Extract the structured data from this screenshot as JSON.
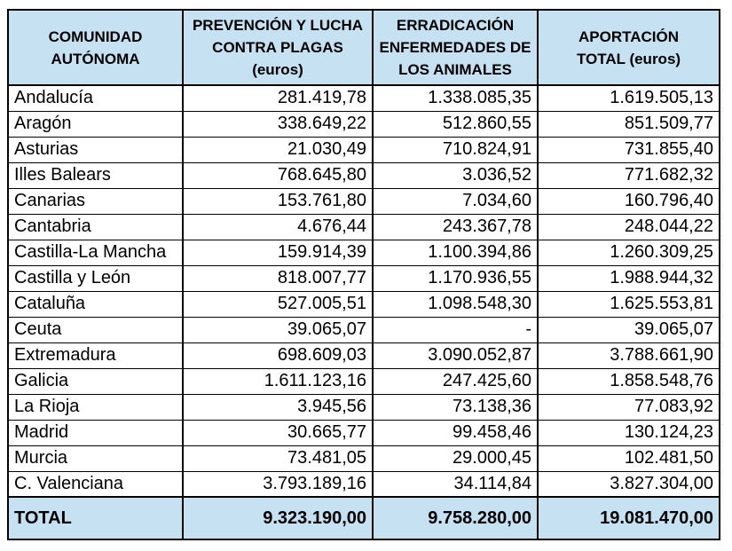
{
  "colors": {
    "header_bg": "#C5E1F2",
    "border": "#000000",
    "text": "#000000",
    "page_bg": "#FFFFFF"
  },
  "table": {
    "headers": [
      "COMUNIDAD\nAUTÓNOMA",
      "PREVENCIÓN Y LUCHA\nCONTRA PLAGAS\n(euros)",
      "ERRADICACIÓN\nENFERMEDADES DE\nLOS ANIMALES",
      "APORTACIÓN\nTOTAL (euros)"
    ],
    "rows": [
      {
        "name": "Andalucía",
        "plagas": "281.419,78",
        "enfermedades": "1.338.085,35",
        "total": "1.619.505,13"
      },
      {
        "name": "Aragón",
        "plagas": "338.649,22",
        "enfermedades": "512.860,55",
        "total": "851.509,77"
      },
      {
        "name": "Asturias",
        "plagas": "21.030,49",
        "enfermedades": "710.824,91",
        "total": "731.855,40"
      },
      {
        "name": "Illes Balears",
        "plagas": "768.645,80",
        "enfermedades": "3.036,52",
        "total": "771.682,32"
      },
      {
        "name": "Canarias",
        "plagas": "153.761,80",
        "enfermedades": "7.034,60",
        "total": "160.796,40"
      },
      {
        "name": "Cantabria",
        "plagas": "4.676,44",
        "enfermedades": "243.367,78",
        "total": "248.044,22"
      },
      {
        "name": "Castilla-La Mancha",
        "plagas": "159.914,39",
        "enfermedades": "1.100.394,86",
        "total": "1.260.309,25"
      },
      {
        "name": "Castilla y León",
        "plagas": "818.007,77",
        "enfermedades": "1.170.936,55",
        "total": "1.988.944,32"
      },
      {
        "name": "Cataluña",
        "plagas": "527.005,51",
        "enfermedades": "1.098.548,30",
        "total": "1.625.553,81"
      },
      {
        "name": "Ceuta",
        "plagas": "39.065,07",
        "enfermedades": "-",
        "total": "39.065,07"
      },
      {
        "name": "Extremadura",
        "plagas": "698.609,03",
        "enfermedades": "3.090.052,87",
        "total": "3.788.661,90"
      },
      {
        "name": "Galicia",
        "plagas": "1.611.123,16",
        "enfermedades": "247.425,60",
        "total": "1.858.548,76"
      },
      {
        "name": "La Rioja",
        "plagas": "3.945,56",
        "enfermedades": "73.138,36",
        "total": "77.083,92"
      },
      {
        "name": "Madrid",
        "plagas": "30.665,77",
        "enfermedades": "99.458,46",
        "total": "130.124,23"
      },
      {
        "name": "Murcia",
        "plagas": "73.481,05",
        "enfermedades": "29.000,45",
        "total": "102.481,50"
      },
      {
        "name": "C. Valenciana",
        "plagas": "3.793.189,16",
        "enfermedades": "34.114,84",
        "total": "3.827.304,00"
      }
    ],
    "total_row": {
      "label": "TOTAL",
      "plagas": "9.323.190,00",
      "enfermedades": "9.758.280,00",
      "total": "19.081.470,00"
    }
  }
}
